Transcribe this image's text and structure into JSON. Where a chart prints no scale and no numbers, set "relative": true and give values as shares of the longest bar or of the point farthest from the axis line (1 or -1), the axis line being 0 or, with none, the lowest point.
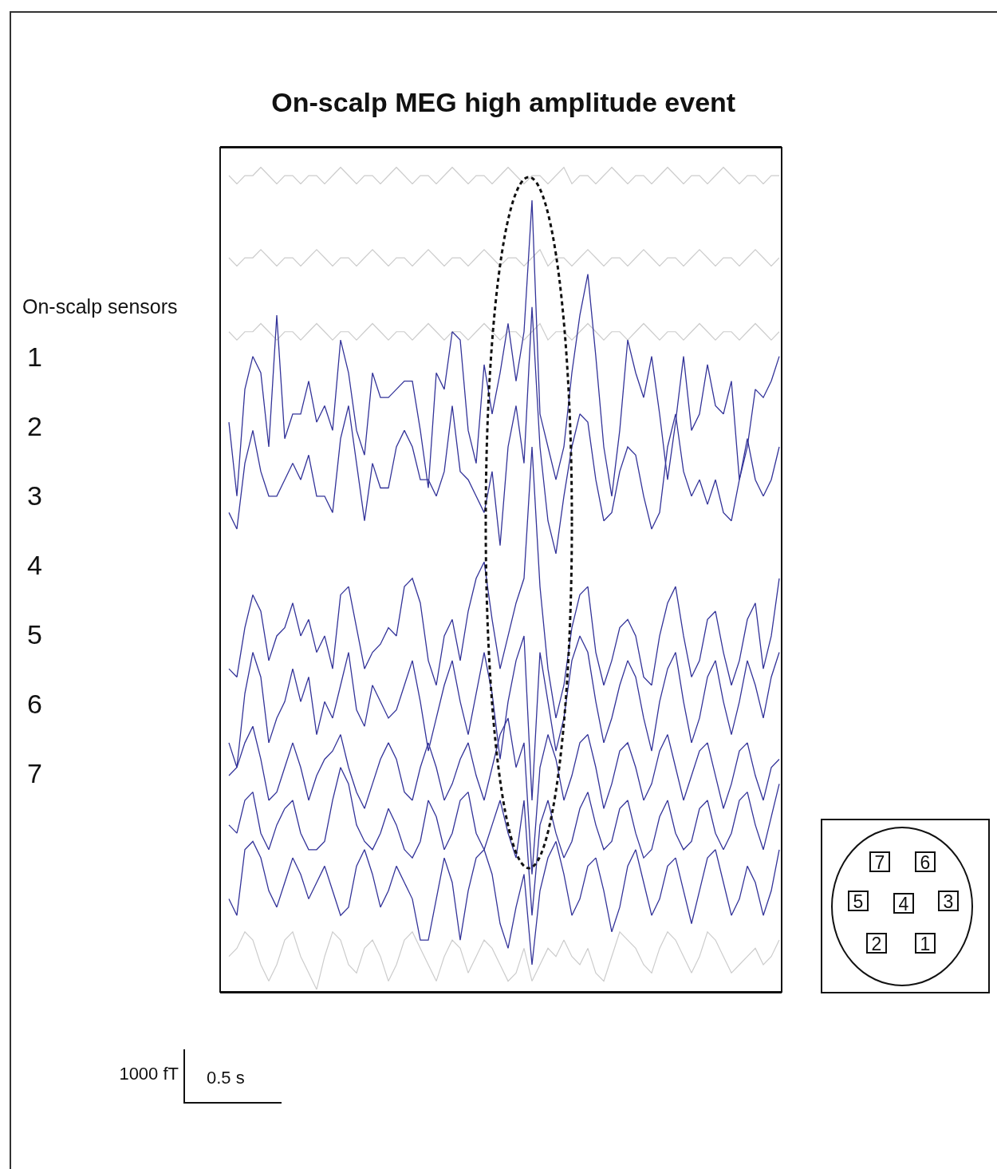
{
  "chart_data": {
    "type": "line",
    "title": "On-scalp MEG high amplitude event",
    "relative": true,
    "categories": [
      null,
      null,
      null,
      null,
      null,
      null,
      null,
      null,
      null,
      null,
      null,
      null,
      null,
      null,
      null,
      null,
      null,
      null,
      null,
      null,
      null,
      null,
      null,
      null,
      null,
      null,
      null,
      null,
      null,
      null,
      null,
      null,
      null,
      null,
      null,
      null,
      null,
      null,
      null,
      null,
      null,
      null,
      null,
      null,
      null,
      null,
      null,
      null,
      null,
      null,
      null,
      null,
      null,
      null,
      null,
      null,
      null,
      null,
      null,
      null,
      null,
      null,
      null,
      null,
      null,
      null,
      null,
      null,
      null,
      null
    ],
    "series": [
      {
        "color": "#cccccc",
        "values": [
          0.99,
          0.98,
          0.99,
          0.99,
          1.0,
          0.99,
          0.98,
          0.99,
          0.99,
          0.98,
          0.99,
          0.99,
          0.98,
          0.99,
          1.0,
          0.99,
          0.98,
          0.99,
          0.99,
          0.98,
          0.99,
          1.0,
          0.99,
          0.98,
          0.99,
          0.99,
          0.98,
          0.99,
          1.0,
          0.99,
          0.98,
          0.99,
          0.99,
          0.98,
          0.99,
          1.0,
          0.99,
          0.98,
          0.99,
          0.99,
          0.98,
          0.99,
          1.0,
          0.98,
          0.99,
          0.99,
          0.98,
          0.99,
          1.0,
          0.99,
          0.98,
          0.99,
          0.99,
          0.98,
          0.99,
          1.0,
          0.99,
          0.98,
          0.99,
          0.99,
          0.98,
          0.99,
          1.0,
          0.99,
          0.98,
          0.99,
          0.99,
          0.98,
          0.99,
          0.99
        ]
      },
      {
        "color": "#cccccc",
        "values": [
          0.89,
          0.88,
          0.89,
          0.89,
          0.9,
          0.89,
          0.88,
          0.89,
          0.89,
          0.88,
          0.89,
          0.9,
          0.89,
          0.88,
          0.89,
          0.89,
          0.88,
          0.89,
          0.9,
          0.89,
          0.88,
          0.89,
          0.89,
          0.88,
          0.89,
          0.9,
          0.89,
          0.88,
          0.89,
          0.89,
          0.88,
          0.89,
          0.9,
          0.89,
          0.88,
          0.89,
          0.89,
          0.88,
          0.89,
          0.9,
          0.88,
          0.89,
          0.89,
          0.88,
          0.89,
          0.9,
          0.89,
          0.88,
          0.89,
          0.89,
          0.88,
          0.89,
          0.9,
          0.89,
          0.88,
          0.89,
          0.89,
          0.88,
          0.89,
          0.9,
          0.89,
          0.88,
          0.89,
          0.89,
          0.88,
          0.89,
          0.9,
          0.89,
          0.88,
          0.89
        ]
      },
      {
        "color": "#cccccc",
        "values": [
          0.8,
          0.79,
          0.8,
          0.8,
          0.81,
          0.8,
          0.79,
          0.8,
          0.8,
          0.79,
          0.8,
          0.81,
          0.8,
          0.79,
          0.8,
          0.8,
          0.79,
          0.8,
          0.81,
          0.8,
          0.79,
          0.8,
          0.8,
          0.79,
          0.8,
          0.81,
          0.8,
          0.79,
          0.8,
          0.8,
          0.79,
          0.8,
          0.81,
          0.8,
          0.79,
          0.8,
          0.8,
          0.79,
          0.8,
          0.81,
          0.79,
          0.8,
          0.8,
          0.79,
          0.8,
          0.81,
          0.8,
          0.79,
          0.8,
          0.8,
          0.79,
          0.8,
          0.81,
          0.8,
          0.79,
          0.8,
          0.8,
          0.79,
          0.8,
          0.81,
          0.8,
          0.79,
          0.8,
          0.8,
          0.79,
          0.8,
          0.81,
          0.8,
          0.79,
          0.8
        ]
      },
      {
        "color": "#333399",
        "values": [
          0.69,
          0.6,
          0.73,
          0.77,
          0.75,
          0.66,
          0.82,
          0.67,
          0.7,
          0.7,
          0.74,
          0.69,
          0.71,
          0.68,
          0.79,
          0.75,
          0.68,
          0.65,
          0.75,
          0.72,
          0.72,
          0.73,
          0.74,
          0.74,
          0.68,
          0.61,
          0.75,
          0.73,
          0.8,
          0.79,
          0.68,
          0.64,
          0.76,
          0.7,
          0.75,
          0.81,
          0.74,
          0.8,
          0.96,
          0.7,
          0.66,
          0.62,
          0.66,
          0.75,
          0.82,
          0.87,
          0.77,
          0.66,
          0.6,
          0.68,
          0.79,
          0.75,
          0.72,
          0.77,
          0.7,
          0.62,
          0.69,
          0.77,
          0.68,
          0.7,
          0.76,
          0.71,
          0.7,
          0.74,
          0.62,
          0.66,
          0.73,
          0.72,
          0.74,
          0.77
        ]
      },
      {
        "color": "#333399",
        "values": [
          0.58,
          0.56,
          0.64,
          0.68,
          0.63,
          0.6,
          0.6,
          0.62,
          0.64,
          0.62,
          0.65,
          0.6,
          0.6,
          0.58,
          0.67,
          0.71,
          0.64,
          0.57,
          0.64,
          0.61,
          0.61,
          0.66,
          0.68,
          0.66,
          0.62,
          0.62,
          0.6,
          0.63,
          0.71,
          0.63,
          0.62,
          0.6,
          0.58,
          0.63,
          0.54,
          0.66,
          0.71,
          0.64,
          0.83,
          0.66,
          0.57,
          0.53,
          0.6,
          0.66,
          0.7,
          0.69,
          0.62,
          0.57,
          0.58,
          0.63,
          0.66,
          0.65,
          0.6,
          0.56,
          0.58,
          0.66,
          0.7,
          0.63,
          0.6,
          0.62,
          0.59,
          0.62,
          0.58,
          0.57,
          0.62,
          0.67,
          0.62,
          0.6,
          0.62,
          0.66
        ]
      },
      {
        "color": "#333399",
        "values": [
          0.39,
          0.38,
          0.44,
          0.48,
          0.46,
          0.4,
          0.43,
          0.44,
          0.47,
          0.43,
          0.45,
          0.41,
          0.43,
          0.39,
          0.48,
          0.49,
          0.44,
          0.39,
          0.41,
          0.42,
          0.44,
          0.43,
          0.49,
          0.5,
          0.47,
          0.4,
          0.37,
          0.43,
          0.45,
          0.4,
          0.46,
          0.5,
          0.52,
          0.45,
          0.39,
          0.43,
          0.47,
          0.5,
          0.66,
          0.49,
          0.39,
          0.33,
          0.37,
          0.44,
          0.48,
          0.49,
          0.41,
          0.37,
          0.4,
          0.44,
          0.45,
          0.43,
          0.38,
          0.37,
          0.43,
          0.47,
          0.49,
          0.43,
          0.38,
          0.4,
          0.45,
          0.46,
          0.41,
          0.37,
          0.4,
          0.45,
          0.47,
          0.39,
          0.43,
          0.5
        ]
      },
      {
        "color": "#333399",
        "values": [
          0.3,
          0.27,
          0.36,
          0.41,
          0.38,
          0.3,
          0.33,
          0.35,
          0.39,
          0.35,
          0.38,
          0.31,
          0.35,
          0.33,
          0.37,
          0.41,
          0.34,
          0.32,
          0.37,
          0.35,
          0.33,
          0.34,
          0.37,
          0.4,
          0.35,
          0.29,
          0.33,
          0.37,
          0.4,
          0.35,
          0.31,
          0.36,
          0.41,
          0.36,
          0.28,
          0.35,
          0.4,
          0.43,
          0.23,
          0.41,
          0.35,
          0.29,
          0.33,
          0.4,
          0.43,
          0.41,
          0.35,
          0.3,
          0.33,
          0.37,
          0.4,
          0.38,
          0.33,
          0.29,
          0.35,
          0.39,
          0.41,
          0.35,
          0.3,
          0.33,
          0.38,
          0.4,
          0.35,
          0.31,
          0.35,
          0.4,
          0.37,
          0.33,
          0.38,
          0.41
        ]
      },
      {
        "color": "#333399",
        "values": [
          0.26,
          0.27,
          0.3,
          0.32,
          0.28,
          0.23,
          0.24,
          0.27,
          0.3,
          0.27,
          0.23,
          0.26,
          0.28,
          0.29,
          0.31,
          0.27,
          0.24,
          0.22,
          0.25,
          0.28,
          0.3,
          0.28,
          0.24,
          0.23,
          0.27,
          0.3,
          0.27,
          0.23,
          0.25,
          0.28,
          0.3,
          0.26,
          0.23,
          0.27,
          0.31,
          0.33,
          0.27,
          0.3,
          0.14,
          0.27,
          0.31,
          0.28,
          0.23,
          0.26,
          0.3,
          0.31,
          0.27,
          0.22,
          0.25,
          0.29,
          0.3,
          0.27,
          0.23,
          0.25,
          0.29,
          0.31,
          0.27,
          0.23,
          0.26,
          0.29,
          0.3,
          0.26,
          0.22,
          0.25,
          0.29,
          0.3,
          0.26,
          0.23,
          0.27,
          0.28
        ]
      },
      {
        "color": "#333399",
        "values": [
          0.2,
          0.19,
          0.23,
          0.24,
          0.19,
          0.17,
          0.2,
          0.22,
          0.23,
          0.19,
          0.17,
          0.17,
          0.18,
          0.23,
          0.27,
          0.25,
          0.2,
          0.18,
          0.17,
          0.19,
          0.22,
          0.2,
          0.17,
          0.16,
          0.18,
          0.23,
          0.21,
          0.17,
          0.19,
          0.23,
          0.24,
          0.19,
          0.17,
          0.2,
          0.23,
          0.19,
          0.16,
          0.23,
          0.09,
          0.2,
          0.23,
          0.19,
          0.16,
          0.18,
          0.22,
          0.24,
          0.2,
          0.17,
          0.18,
          0.22,
          0.23,
          0.19,
          0.16,
          0.17,
          0.21,
          0.23,
          0.19,
          0.17,
          0.18,
          0.22,
          0.23,
          0.19,
          0.17,
          0.19,
          0.23,
          0.24,
          0.2,
          0.17,
          0.21,
          0.25
        ]
      },
      {
        "color": "#333399",
        "values": [
          0.11,
          0.09,
          0.17,
          0.18,
          0.16,
          0.12,
          0.1,
          0.13,
          0.16,
          0.14,
          0.11,
          0.13,
          0.15,
          0.12,
          0.09,
          0.1,
          0.15,
          0.17,
          0.14,
          0.1,
          0.12,
          0.15,
          0.13,
          0.11,
          0.06,
          0.06,
          0.11,
          0.16,
          0.13,
          0.06,
          0.12,
          0.16,
          0.17,
          0.14,
          0.08,
          0.05,
          0.1,
          0.14,
          0.03,
          0.12,
          0.16,
          0.18,
          0.14,
          0.09,
          0.11,
          0.15,
          0.16,
          0.12,
          0.07,
          0.1,
          0.15,
          0.17,
          0.13,
          0.09,
          0.11,
          0.15,
          0.16,
          0.12,
          0.08,
          0.12,
          0.16,
          0.17,
          0.13,
          0.09,
          0.11,
          0.15,
          0.13,
          0.09,
          0.12,
          0.17
        ]
      },
      {
        "color": "#cccccc",
        "values": [
          0.04,
          0.05,
          0.07,
          0.06,
          0.03,
          0.01,
          0.03,
          0.06,
          0.07,
          0.04,
          0.02,
          0.0,
          0.04,
          0.07,
          0.06,
          0.03,
          0.02,
          0.05,
          0.06,
          0.04,
          0.01,
          0.03,
          0.06,
          0.07,
          0.05,
          0.03,
          0.01,
          0.04,
          0.06,
          0.05,
          0.02,
          0.04,
          0.06,
          0.05,
          0.03,
          0.01,
          0.02,
          0.05,
          0.01,
          0.03,
          0.05,
          0.04,
          0.06,
          0.04,
          0.03,
          0.05,
          0.02,
          0.01,
          0.04,
          0.07,
          0.06,
          0.05,
          0.03,
          0.02,
          0.05,
          0.07,
          0.06,
          0.04,
          0.02,
          0.04,
          0.07,
          0.06,
          0.04,
          0.02,
          0.03,
          0.04,
          0.05,
          0.03,
          0.04,
          0.06
        ]
      }
    ],
    "annotations": [
      "On-scalp sensors",
      "1",
      "2",
      "3",
      "4",
      "5",
      "6",
      "7",
      "1000 fT",
      "0.5 s",
      "7",
      "6",
      "5",
      "4",
      "3",
      "2",
      "1"
    ]
  }
}
